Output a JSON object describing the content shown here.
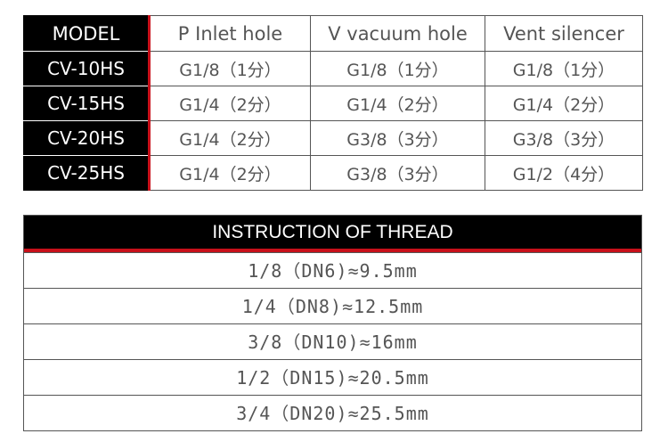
{
  "model_table": {
    "headers": [
      "MODEL",
      "P Inlet hole",
      "V vacuum hole",
      "Vent silencer"
    ],
    "rows": [
      [
        "CV-10HS",
        "G1/8（1分）",
        "G1/8（1分）",
        "G1/8（1分）"
      ],
      [
        "CV-15HS",
        "G1/4（2分）",
        "G1/4（2分）",
        "G1/4（2分）"
      ],
      [
        "CV-20HS",
        "G1/4（2分）",
        "G3/8（3分）",
        "G3/8（3分）"
      ],
      [
        "CV-25HS",
        "G1/4（2分）",
        "G3/8（3分）",
        "G1/2（4分）"
      ]
    ]
  },
  "thread_table": {
    "title": "INSTRUCTION OF THREAD",
    "rows": [
      "1/8（DN6)≈9.5mm",
      "1/4（DN8)≈12.5mm",
      "3/8（DN10)≈16mm",
      "1/2（DN15)≈20.5mm",
      "3/4（DN20)≈25.5mm"
    ]
  },
  "colors": {
    "accent": "#c8101a",
    "header_bg": "#000000"
  }
}
